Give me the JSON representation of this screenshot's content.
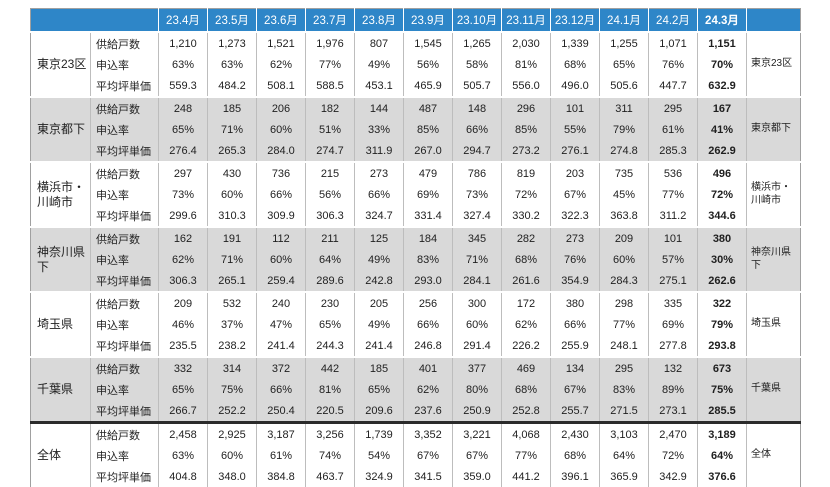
{
  "colors": {
    "header_blue": "#2e86c8",
    "header_text": "#ffffff",
    "stripe_gray": "#d9d9d9",
    "grid_line": "#bdbdbd",
    "total_separator": "#2b2b2b",
    "body_text": "#1f1f1f"
  },
  "chart_data": {
    "type": "table",
    "title": "",
    "columns": [
      "23.4月",
      "23.5月",
      "23.6月",
      "23.7月",
      "23.8月",
      "23.9月",
      "23.10月",
      "23.11月",
      "23.12月",
      "24.1月",
      "24.2月",
      "24.3月"
    ],
    "row_metrics": [
      "供給戸数",
      "申込率",
      "平均坪単価"
    ],
    "highlight_last_column": true,
    "regions": [
      {
        "name": "東京23区",
        "shaded": false,
        "supply": [
          "1,210",
          "1,273",
          "1,521",
          "1,976",
          "807",
          "1,545",
          "1,265",
          "2,030",
          "1,339",
          "1,255",
          "1,071",
          "1,151"
        ],
        "rate": [
          "63%",
          "63%",
          "62%",
          "77%",
          "49%",
          "56%",
          "58%",
          "81%",
          "68%",
          "65%",
          "76%",
          "70%"
        ],
        "price": [
          "559.3",
          "484.2",
          "508.1",
          "588.5",
          "453.1",
          "465.9",
          "505.7",
          "556.0",
          "496.0",
          "505.6",
          "447.7",
          "632.9"
        ]
      },
      {
        "name": "東京都下",
        "shaded": true,
        "supply": [
          "248",
          "185",
          "206",
          "182",
          "144",
          "487",
          "148",
          "296",
          "101",
          "311",
          "295",
          "167"
        ],
        "rate": [
          "65%",
          "71%",
          "60%",
          "51%",
          "33%",
          "85%",
          "66%",
          "85%",
          "55%",
          "79%",
          "61%",
          "41%"
        ],
        "price": [
          "276.4",
          "265.3",
          "284.0",
          "274.7",
          "311.9",
          "267.0",
          "294.7",
          "273.2",
          "276.1",
          "274.8",
          "285.3",
          "262.9"
        ]
      },
      {
        "name": "横浜市・川崎市",
        "shaded": false,
        "supply": [
          "297",
          "430",
          "736",
          "215",
          "273",
          "479",
          "786",
          "819",
          "203",
          "735",
          "536",
          "496"
        ],
        "rate": [
          "73%",
          "60%",
          "66%",
          "56%",
          "66%",
          "69%",
          "73%",
          "72%",
          "67%",
          "45%",
          "77%",
          "72%"
        ],
        "price": [
          "299.6",
          "310.3",
          "309.9",
          "306.3",
          "324.7",
          "331.4",
          "327.4",
          "330.2",
          "322.3",
          "363.8",
          "311.2",
          "344.6"
        ]
      },
      {
        "name": "神奈川県下",
        "shaded": true,
        "supply": [
          "162",
          "191",
          "112",
          "211",
          "125",
          "184",
          "345",
          "282",
          "273",
          "209",
          "101",
          "380"
        ],
        "rate": [
          "62%",
          "71%",
          "60%",
          "64%",
          "49%",
          "83%",
          "71%",
          "68%",
          "76%",
          "60%",
          "57%",
          "30%"
        ],
        "price": [
          "306.3",
          "265.1",
          "259.4",
          "289.6",
          "242.8",
          "293.0",
          "284.1",
          "261.6",
          "354.9",
          "284.3",
          "275.1",
          "262.6"
        ]
      },
      {
        "name": "埼玉県",
        "shaded": false,
        "supply": [
          "209",
          "532",
          "240",
          "230",
          "205",
          "256",
          "300",
          "172",
          "380",
          "298",
          "335",
          "322"
        ],
        "rate": [
          "46%",
          "37%",
          "47%",
          "65%",
          "49%",
          "66%",
          "60%",
          "62%",
          "66%",
          "77%",
          "69%",
          "79%"
        ],
        "price": [
          "235.5",
          "238.2",
          "241.4",
          "244.3",
          "241.4",
          "246.8",
          "291.4",
          "226.2",
          "255.9",
          "248.1",
          "277.8",
          "293.8"
        ]
      },
      {
        "name": "千葉県",
        "shaded": true,
        "supply": [
          "332",
          "314",
          "372",
          "442",
          "185",
          "401",
          "377",
          "469",
          "134",
          "295",
          "132",
          "673"
        ],
        "rate": [
          "65%",
          "75%",
          "66%",
          "81%",
          "65%",
          "62%",
          "80%",
          "68%",
          "67%",
          "83%",
          "89%",
          "75%"
        ],
        "price": [
          "266.7",
          "252.2",
          "250.4",
          "220.5",
          "209.6",
          "237.6",
          "250.9",
          "252.8",
          "255.7",
          "271.5",
          "273.1",
          "285.5"
        ]
      },
      {
        "name": "全体",
        "shaded": false,
        "separator_before": true,
        "supply": [
          "2,458",
          "2,925",
          "3,187",
          "3,256",
          "1,739",
          "3,352",
          "3,221",
          "4,068",
          "2,430",
          "3,103",
          "2,470",
          "3,189"
        ],
        "rate": [
          "63%",
          "60%",
          "61%",
          "74%",
          "54%",
          "67%",
          "67%",
          "77%",
          "68%",
          "64%",
          "72%",
          "64%"
        ],
        "price": [
          "404.8",
          "348.0",
          "384.8",
          "463.7",
          "324.9",
          "341.5",
          "359.0",
          "441.2",
          "396.1",
          "365.9",
          "342.9",
          "376.6"
        ]
      }
    ]
  }
}
